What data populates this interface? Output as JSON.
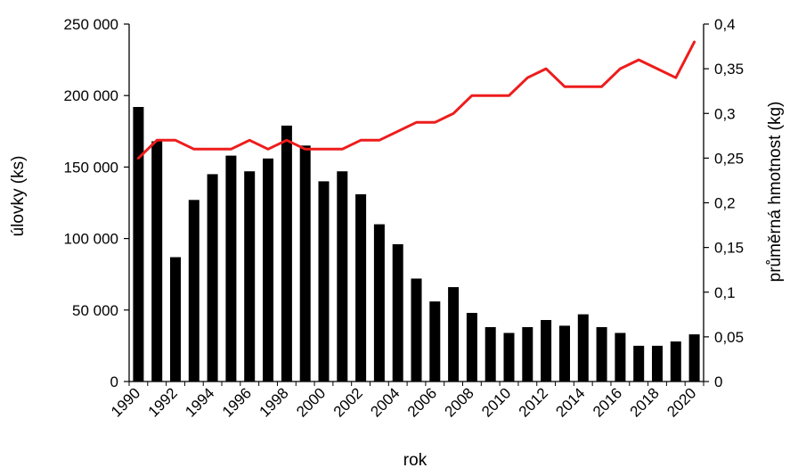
{
  "chart_data": {
    "type": "bar+line",
    "xlabel": "rok",
    "ylabel_left": "úlovky (ks)",
    "ylabel_right": "průměrná hmotnost (kg)",
    "x": [
      1990,
      1991,
      1992,
      1993,
      1994,
      1995,
      1996,
      1997,
      1998,
      1999,
      2000,
      2001,
      2002,
      2003,
      2004,
      2005,
      2006,
      2007,
      2008,
      2009,
      2010,
      2011,
      2012,
      2013,
      2014,
      2015,
      2016,
      2017,
      2018,
      2019,
      2020
    ],
    "x_tick_labels": [
      "1990",
      "1992",
      "1994",
      "1996",
      "1998",
      "2000",
      "2002",
      "2004",
      "2006",
      "2008",
      "2010",
      "2012",
      "2014",
      "2016",
      "2018",
      "2020"
    ],
    "ylim_left": [
      0,
      250000
    ],
    "yticks_left": [
      "0",
      "50 000",
      "100 000",
      "150 000",
      "200 000",
      "250 000"
    ],
    "ylim_right": [
      0,
      0.4
    ],
    "yticks_right": [
      "0",
      "0,05",
      "0,1",
      "0,15",
      "0,2",
      "0,25",
      "0,3",
      "0,35",
      "0,4"
    ],
    "grid": false,
    "legend": "none",
    "series": [
      {
        "kind": "bar",
        "axis": "left",
        "color": "#000000",
        "values": [
          192000,
          168000,
          87000,
          127000,
          145000,
          158000,
          147000,
          156000,
          179000,
          165000,
          140000,
          147000,
          131000,
          110000,
          96000,
          72000,
          56000,
          66000,
          48000,
          38000,
          34000,
          38000,
          43000,
          39000,
          47000,
          38000,
          34000,
          25000,
          25000,
          28000,
          33000
        ]
      },
      {
        "kind": "line",
        "axis": "right",
        "color": "#ee1c1c",
        "values": [
          0.25,
          0.27,
          0.27,
          0.26,
          0.26,
          0.26,
          0.27,
          0.26,
          0.27,
          0.26,
          0.26,
          0.26,
          0.27,
          0.27,
          0.28,
          0.29,
          0.29,
          0.3,
          0.32,
          0.32,
          0.32,
          0.34,
          0.35,
          0.33,
          0.33,
          0.33,
          0.35,
          0.36,
          0.35,
          0.34,
          0.38
        ]
      }
    ]
  }
}
